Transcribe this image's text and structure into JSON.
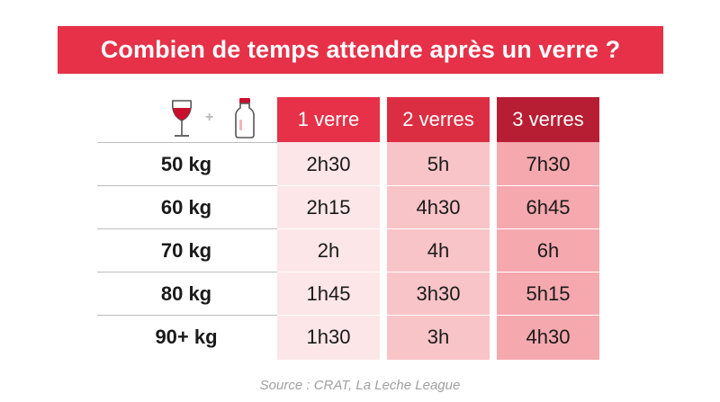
{
  "title": "Combien de temps attendre après un verre ?",
  "header": {
    "plus_sign": "+",
    "columns": [
      "1 verre",
      "2 verres",
      "3 verres"
    ]
  },
  "rows": [
    {
      "label": "50 kg",
      "values": [
        "2h30",
        "5h",
        "7h30"
      ]
    },
    {
      "label": "60 kg",
      "values": [
        "2h15",
        "4h30",
        "6h45"
      ]
    },
    {
      "label": "70 kg",
      "values": [
        "2h",
        "4h",
        "6h"
      ]
    },
    {
      "label": "80 kg",
      "values": [
        "1h45",
        "3h30",
        "5h15"
      ]
    },
    {
      "label": "90+ kg",
      "values": [
        "1h30",
        "3h",
        "4h30"
      ]
    }
  ],
  "source": "Source : CRAT, La Leche League",
  "colors": {
    "title_bg": "#e63148",
    "header_1": "#e63148",
    "header_2": "#dc2e42",
    "header_3": "#b81e33",
    "col_1": "#fde6e7",
    "col_2": "#f9c4c8",
    "col_3": "#f5a8ae"
  },
  "icons": [
    "wine-glass-icon",
    "milk-bottle-icon"
  ]
}
